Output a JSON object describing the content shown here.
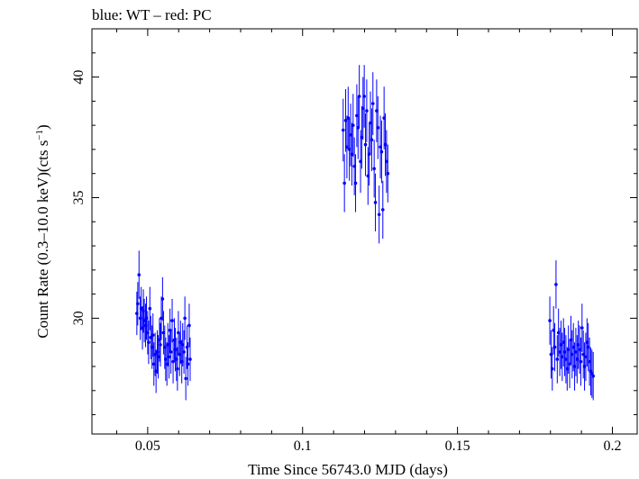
{
  "chart_data": {
    "type": "scatter",
    "title": "blue: WT – red: PC",
    "xlabel": "Time Since 56743.0 MJD (days)",
    "ylabel_main": "Count Rate (0.3–10.0 keV)(cts s",
    "ylabel_sup": "−1",
    "ylabel_close": ")",
    "xlim": [
      0.032,
      0.208
    ],
    "ylim": [
      25.2,
      42.0
    ],
    "xticks": [
      0.05,
      0.1,
      0.15,
      0.2
    ],
    "xtick_labels": [
      "0.05",
      "0.1",
      "0.15",
      "0.2"
    ],
    "yticks": [
      30,
      35,
      40
    ],
    "ytick_labels": [
      "30",
      "35",
      "40"
    ],
    "grid": false,
    "series": [
      {
        "color": "#0000ff",
        "points": [
          [
            0.0465,
            30.2,
            0.9
          ],
          [
            0.0468,
            30.6,
            0.9
          ],
          [
            0.0472,
            31.8,
            1.0
          ],
          [
            0.0476,
            30.0,
            0.9
          ],
          [
            0.0479,
            30.4,
            0.9
          ],
          [
            0.0483,
            29.6,
            0.9
          ],
          [
            0.0486,
            30.3,
            0.9
          ],
          [
            0.0489,
            29.9,
            0.9
          ],
          [
            0.0493,
            29.7,
            0.9
          ],
          [
            0.0496,
            30.0,
            0.9
          ],
          [
            0.05,
            29.4,
            0.9
          ],
          [
            0.0503,
            29.0,
            0.9
          ],
          [
            0.0507,
            30.4,
            0.9
          ],
          [
            0.051,
            29.2,
            0.9
          ],
          [
            0.0514,
            28.8,
            0.9
          ],
          [
            0.0517,
            29.3,
            0.9
          ],
          [
            0.052,
            28.1,
            0.9
          ],
          [
            0.0524,
            28.5,
            0.9
          ],
          [
            0.0527,
            27.8,
            0.9
          ],
          [
            0.0531,
            28.6,
            0.9
          ],
          [
            0.0534,
            28.4,
            0.9
          ],
          [
            0.0538,
            29.1,
            0.9
          ],
          [
            0.0541,
            28.9,
            0.9
          ],
          [
            0.0544,
            30.0,
            0.9
          ],
          [
            0.0548,
            30.8,
            0.9
          ],
          [
            0.0551,
            29.4,
            0.9
          ],
          [
            0.0555,
            28.8,
            0.9
          ],
          [
            0.0558,
            28.3,
            0.9
          ],
          [
            0.0562,
            28.1,
            0.9
          ],
          [
            0.0565,
            28.9,
            0.9
          ],
          [
            0.0569,
            28.4,
            0.9
          ],
          [
            0.0572,
            29.5,
            0.9
          ],
          [
            0.0575,
            28.6,
            0.9
          ],
          [
            0.0579,
            29.9,
            0.9
          ],
          [
            0.0582,
            28.2,
            0.9
          ],
          [
            0.0586,
            29.1,
            0.9
          ],
          [
            0.0589,
            28.7,
            0.9
          ],
          [
            0.0593,
            28.3,
            0.9
          ],
          [
            0.0596,
            27.9,
            0.9
          ],
          [
            0.0599,
            29.4,
            0.9
          ],
          [
            0.0603,
            28.5,
            0.9
          ],
          [
            0.0606,
            29.0,
            0.9
          ],
          [
            0.061,
            28.2,
            0.9
          ],
          [
            0.0613,
            28.9,
            0.9
          ],
          [
            0.0617,
            28.6,
            0.9
          ],
          [
            0.062,
            30.0,
            0.9
          ],
          [
            0.0623,
            27.5,
            0.9
          ],
          [
            0.0627,
            28.8,
            0.9
          ],
          [
            0.063,
            28.1,
            0.9
          ],
          [
            0.0634,
            29.7,
            0.9
          ],
          [
            0.0637,
            28.3,
            0.9
          ],
          [
            0.1131,
            37.8,
            1.3
          ],
          [
            0.1135,
            35.6,
            1.2
          ],
          [
            0.1139,
            38.2,
            1.3
          ],
          [
            0.1143,
            37.1,
            1.3
          ],
          [
            0.1147,
            38.3,
            1.3
          ],
          [
            0.1151,
            37.0,
            1.3
          ],
          [
            0.1155,
            37.6,
            1.3
          ],
          [
            0.1159,
            36.8,
            1.3
          ],
          [
            0.1163,
            38.0,
            1.3
          ],
          [
            0.1167,
            36.3,
            1.2
          ],
          [
            0.1171,
            35.6,
            1.2
          ],
          [
            0.1175,
            38.4,
            1.3
          ],
          [
            0.1179,
            37.9,
            1.3
          ],
          [
            0.1183,
            39.2,
            1.3
          ],
          [
            0.1187,
            36.5,
            1.3
          ],
          [
            0.1191,
            37.5,
            1.3
          ],
          [
            0.1195,
            38.7,
            1.3
          ],
          [
            0.1199,
            39.2,
            1.3
          ],
          [
            0.1203,
            37.2,
            1.3
          ],
          [
            0.1207,
            38.6,
            1.3
          ],
          [
            0.1211,
            35.9,
            1.2
          ],
          [
            0.1215,
            36.8,
            1.3
          ],
          [
            0.1219,
            38.1,
            1.3
          ],
          [
            0.1223,
            37.4,
            1.3
          ],
          [
            0.1227,
            38.9,
            1.3
          ],
          [
            0.1231,
            36.2,
            1.2
          ],
          [
            0.1235,
            34.8,
            1.2
          ],
          [
            0.1239,
            38.6,
            1.3
          ],
          [
            0.1243,
            37.9,
            1.3
          ],
          [
            0.1247,
            34.3,
            1.2
          ],
          [
            0.1251,
            37.1,
            1.3
          ],
          [
            0.1255,
            36.9,
            1.3
          ],
          [
            0.1259,
            34.5,
            1.2
          ],
          [
            0.1263,
            38.3,
            1.3
          ],
          [
            0.1267,
            37.2,
            1.3
          ],
          [
            0.1271,
            36.5,
            1.3
          ],
          [
            0.1275,
            36.0,
            1.2
          ],
          [
            0.1798,
            29.9,
            1.0
          ],
          [
            0.1802,
            28.5,
            1.0
          ],
          [
            0.1806,
            27.9,
            0.9
          ],
          [
            0.181,
            29.5,
            1.0
          ],
          [
            0.1814,
            28.8,
            1.0
          ],
          [
            0.1818,
            31.4,
            1.0
          ],
          [
            0.1822,
            28.3,
            1.0
          ],
          [
            0.1826,
            29.4,
            1.0
          ],
          [
            0.183,
            28.6,
            1.0
          ],
          [
            0.1834,
            28.9,
            1.0
          ],
          [
            0.1838,
            28.4,
            1.0
          ],
          [
            0.1842,
            29.0,
            1.0
          ],
          [
            0.1846,
            28.6,
            1.0
          ],
          [
            0.185,
            28.3,
            1.0
          ],
          [
            0.1854,
            27.9,
            0.9
          ],
          [
            0.1858,
            28.7,
            1.0
          ],
          [
            0.1862,
            28.1,
            1.0
          ],
          [
            0.1866,
            29.1,
            1.0
          ],
          [
            0.187,
            28.5,
            1.0
          ],
          [
            0.1874,
            28.8,
            1.0
          ],
          [
            0.1878,
            28.0,
            1.0
          ],
          [
            0.1882,
            28.6,
            1.0
          ],
          [
            0.1886,
            28.3,
            1.0
          ],
          [
            0.189,
            28.9,
            1.0
          ],
          [
            0.1894,
            28.7,
            1.0
          ],
          [
            0.1898,
            28.2,
            1.0
          ],
          [
            0.1902,
            29.6,
            1.0
          ],
          [
            0.1906,
            28.5,
            1.0
          ],
          [
            0.191,
            28.0,
            1.0
          ],
          [
            0.1914,
            28.4,
            1.0
          ],
          [
            0.1918,
            29.0,
            1.0
          ],
          [
            0.1922,
            28.8,
            1.0
          ],
          [
            0.1926,
            28.2,
            1.0
          ],
          [
            0.193,
            27.8,
            1.0
          ],
          [
            0.1934,
            27.7,
            1.0
          ],
          [
            0.1938,
            27.6,
            1.0
          ]
        ]
      }
    ]
  }
}
